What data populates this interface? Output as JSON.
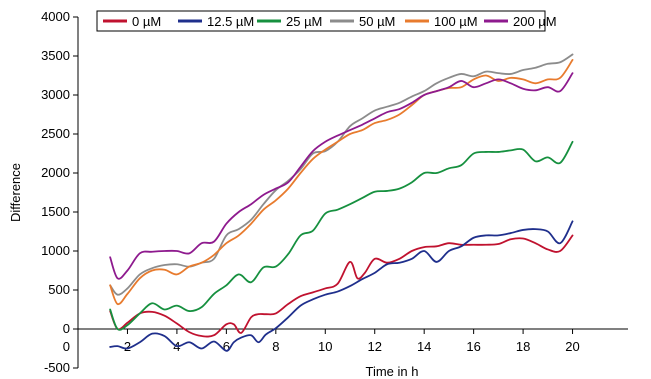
{
  "chart_data": {
    "type": "line",
    "title": "",
    "xlabel": "Time in h",
    "ylabel": "Difference",
    "xlim": [
      0,
      22
    ],
    "ylim": [
      -500,
      4000
    ],
    "x_ticks": [
      2,
      4,
      6,
      8,
      10,
      12,
      14,
      16,
      18,
      20
    ],
    "y_ticks": [
      -500,
      0,
      500,
      1000,
      1500,
      2000,
      2500,
      3000,
      3500,
      4000
    ],
    "x_zero_label": "0",
    "grid": false,
    "legend_position": "top",
    "series": [
      {
        "name": "0 µM",
        "color": "#c0122f",
        "x": [
          1.3,
          1.6,
          2.0,
          2.5,
          3.0,
          3.5,
          4.0,
          4.5,
          5.0,
          5.5,
          6.0,
          6.3,
          6.6,
          7.0,
          7.3,
          7.6,
          8.0,
          8.5,
          9.0,
          9.5,
          10.0,
          10.5,
          11.0,
          11.3,
          11.6,
          12.0,
          12.5,
          13.0,
          13.5,
          14.0,
          14.5,
          15.0,
          15.5,
          16.0,
          16.5,
          17.0,
          17.5,
          18.0,
          18.5,
          19.0,
          19.5,
          20.0
        ],
        "y": [
          230,
          0,
          80,
          200,
          220,
          170,
          70,
          -40,
          -90,
          -80,
          60,
          60,
          -50,
          150,
          190,
          190,
          200,
          320,
          420,
          470,
          520,
          580,
          860,
          650,
          720,
          900,
          850,
          900,
          1000,
          1050,
          1060,
          1100,
          1080,
          1080,
          1080,
          1090,
          1150,
          1160,
          1100,
          1020,
          1000,
          1200
        ]
      },
      {
        "name": "12.5 µM",
        "color": "#1f2f8c",
        "x": [
          1.3,
          1.6,
          2.0,
          2.5,
          3.0,
          3.5,
          4.0,
          4.5,
          5.0,
          5.5,
          6.0,
          6.3,
          6.6,
          7.0,
          7.3,
          7.6,
          8.0,
          8.5,
          9.0,
          9.5,
          10.0,
          10.5,
          11.0,
          11.5,
          12.0,
          12.5,
          13.0,
          13.5,
          14.0,
          14.5,
          15.0,
          15.5,
          16.0,
          16.5,
          17.0,
          17.5,
          18.0,
          18.5,
          19.0,
          19.5,
          20.0
        ],
        "y": [
          -230,
          -220,
          -250,
          -170,
          -60,
          -90,
          -220,
          -170,
          -250,
          -160,
          -280,
          -170,
          -110,
          -80,
          -170,
          -70,
          10,
          150,
          300,
          380,
          440,
          480,
          550,
          640,
          720,
          830,
          850,
          900,
          1000,
          860,
          1000,
          1060,
          1170,
          1200,
          1200,
          1230,
          1270,
          1280,
          1250,
          1100,
          1380
        ]
      },
      {
        "name": "25 µM",
        "color": "#16903f",
        "x": [
          1.3,
          1.6,
          2.0,
          2.5,
          3.0,
          3.5,
          4.0,
          4.5,
          5.0,
          5.5,
          6.0,
          6.5,
          7.0,
          7.5,
          8.0,
          8.5,
          9.0,
          9.5,
          10.0,
          10.5,
          11.0,
          11.5,
          12.0,
          12.5,
          13.0,
          13.5,
          14.0,
          14.5,
          15.0,
          15.5,
          16.0,
          16.5,
          17.0,
          17.5,
          18.0,
          18.5,
          19.0,
          19.5,
          20.0
        ],
        "y": [
          250,
          0,
          50,
          200,
          330,
          250,
          300,
          230,
          280,
          450,
          560,
          700,
          600,
          790,
          800,
          960,
          1200,
          1260,
          1480,
          1530,
          1600,
          1680,
          1760,
          1770,
          1800,
          1880,
          2000,
          2000,
          2060,
          2100,
          2250,
          2270,
          2270,
          2290,
          2300,
          2150,
          2200,
          2130,
          2400
        ]
      },
      {
        "name": "50 µM",
        "color": "#8c8c8c",
        "x": [
          1.3,
          1.6,
          2.0,
          2.5,
          3.0,
          3.5,
          4.0,
          4.5,
          5.0,
          5.5,
          6.0,
          6.5,
          7.0,
          7.5,
          8.0,
          8.5,
          9.0,
          9.5,
          10.0,
          10.5,
          11.0,
          11.5,
          12.0,
          12.5,
          13.0,
          13.5,
          14.0,
          14.5,
          15.0,
          15.5,
          16.0,
          16.5,
          17.0,
          17.5,
          18.0,
          18.5,
          19.0,
          19.5,
          20.0
        ],
        "y": [
          560,
          440,
          520,
          700,
          780,
          820,
          830,
          800,
          850,
          900,
          1200,
          1280,
          1400,
          1600,
          1780,
          1900,
          2050,
          2250,
          2280,
          2400,
          2600,
          2700,
          2800,
          2850,
          2900,
          2980,
          3050,
          3150,
          3220,
          3270,
          3240,
          3300,
          3280,
          3270,
          3320,
          3350,
          3400,
          3420,
          3520
        ]
      },
      {
        "name": "100 µM",
        "color": "#e87b2e",
        "x": [
          1.3,
          1.6,
          2.0,
          2.5,
          3.0,
          3.5,
          4.0,
          4.5,
          5.0,
          5.5,
          6.0,
          6.5,
          7.0,
          7.5,
          8.0,
          8.5,
          9.0,
          9.5,
          10.0,
          10.5,
          11.0,
          11.5,
          12.0,
          12.5,
          13.0,
          13.5,
          14.0,
          14.5,
          15.0,
          15.5,
          16.0,
          16.5,
          17.0,
          17.5,
          18.0,
          18.5,
          19.0,
          19.5,
          20.0
        ],
        "y": [
          560,
          320,
          450,
          650,
          750,
          760,
          700,
          800,
          850,
          950,
          1100,
          1200,
          1350,
          1530,
          1650,
          1800,
          2000,
          2180,
          2300,
          2400,
          2500,
          2550,
          2640,
          2680,
          2750,
          2870,
          3000,
          3050,
          3090,
          3100,
          3200,
          3250,
          3180,
          3220,
          3200,
          3150,
          3200,
          3220,
          3450
        ]
      },
      {
        "name": "200 µM",
        "color": "#8e1a8e",
        "x": [
          1.3,
          1.6,
          2.0,
          2.5,
          3.0,
          3.5,
          4.0,
          4.5,
          5.0,
          5.5,
          6.0,
          6.5,
          7.0,
          7.5,
          8.0,
          8.5,
          9.0,
          9.5,
          10.0,
          10.5,
          11.0,
          11.5,
          12.0,
          12.5,
          13.0,
          13.5,
          14.0,
          14.5,
          15.0,
          15.5,
          16.0,
          16.5,
          17.0,
          17.5,
          18.0,
          18.5,
          19.0,
          19.5,
          20.0
        ],
        "y": [
          920,
          650,
          750,
          970,
          990,
          1000,
          1000,
          970,
          1100,
          1120,
          1350,
          1500,
          1600,
          1720,
          1800,
          1880,
          2080,
          2280,
          2400,
          2480,
          2550,
          2620,
          2700,
          2780,
          2820,
          2900,
          3000,
          3050,
          3100,
          3180,
          3100,
          3150,
          3200,
          3150,
          3080,
          3060,
          3100,
          3050,
          3280
        ]
      }
    ]
  }
}
